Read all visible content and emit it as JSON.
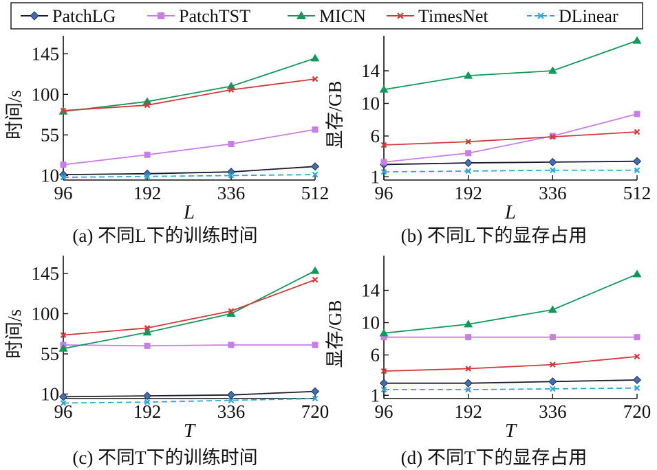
{
  "colors": {
    "PatchLG": "#1a1a2e",
    "PatchLG_marker": "#3f6fb5",
    "PatchTST": "#c77ee6",
    "MICN": "#12985a",
    "TimesNet": "#d13a3a",
    "DLinear": "#2aa8d8"
  },
  "legend": {
    "placement": "top",
    "entries": [
      {
        "name": "PatchLG",
        "marker": "diamond"
      },
      {
        "name": "PatchTST",
        "marker": "square"
      },
      {
        "name": "MICN",
        "marker": "triangle"
      },
      {
        "name": "TimesNet",
        "marker": "x"
      },
      {
        "name": "DLinear",
        "marker": "x",
        "dashed": true
      }
    ]
  },
  "chart_data": [
    {
      "type": "line",
      "caption": "(a) 不同L下的训练时间",
      "xlabel": "L",
      "ylabel": "时间/s",
      "categories": [
        "96",
        "192",
        "336",
        "512"
      ],
      "yticks": [
        10,
        55,
        100,
        145
      ],
      "ylim": [
        5,
        165
      ],
      "series": [
        {
          "name": "PatchLG",
          "values": [
            11,
            12,
            14,
            20
          ]
        },
        {
          "name": "PatchTST",
          "values": [
            22,
            33,
            45,
            61
          ]
        },
        {
          "name": "MICN",
          "values": [
            81,
            92,
            109,
            140
          ]
        },
        {
          "name": "TimesNet",
          "values": [
            82,
            88,
            105,
            117
          ]
        },
        {
          "name": "DLinear",
          "values": [
            8,
            9,
            10,
            11
          ]
        }
      ]
    },
    {
      "type": "line",
      "caption": "(b) 不同L下的显存占用",
      "xlabel": "L",
      "ylabel": "显存/GB",
      "categories": [
        "96",
        "192",
        "336",
        "512"
      ],
      "yticks": [
        1,
        6,
        10,
        14
      ],
      "ylim": [
        0.6,
        18.3
      ],
      "series": [
        {
          "name": "PatchLG",
          "values": [
            2.5,
            2.7,
            2.8,
            2.9
          ]
        },
        {
          "name": "PatchTST",
          "values": [
            2.8,
            3.9,
            6.0,
            8.7
          ]
        },
        {
          "name": "MICN",
          "values": [
            11.7,
            13.4,
            14.0,
            17.7
          ]
        },
        {
          "name": "TimesNet",
          "values": [
            4.9,
            5.3,
            5.9,
            6.5
          ]
        },
        {
          "name": "DLinear",
          "values": [
            1.6,
            1.7,
            1.8,
            1.8
          ]
        }
      ]
    },
    {
      "type": "line",
      "caption": "(c) 不同T下的训练时间",
      "xlabel": "T",
      "ylabel": "时间/s",
      "categories": [
        "96",
        "192",
        "336",
        "720"
      ],
      "yticks": [
        10,
        55,
        100,
        145
      ],
      "ylim": [
        5,
        165
      ],
      "series": [
        {
          "name": "PatchLG",
          "values": [
            7,
            8,
            9,
            13
          ]
        },
        {
          "name": "PatchTST",
          "values": [
            65,
            64,
            65,
            65
          ]
        },
        {
          "name": "MICN",
          "values": [
            61,
            79,
            100,
            148
          ]
        },
        {
          "name": "TimesNet",
          "values": [
            76,
            84,
            103,
            138
          ]
        },
        {
          "name": "DLinear",
          "values": [
            0,
            1,
            3,
            5
          ]
        }
      ]
    },
    {
      "type": "line",
      "caption": "(d) 不同T下的显存占用",
      "xlabel": "T",
      "ylabel": "显存/GB",
      "categories": [
        "96",
        "192",
        "336",
        "720"
      ],
      "yticks": [
        1,
        6,
        10,
        14
      ],
      "ylim": [
        0.6,
        18.3
      ],
      "series": [
        {
          "name": "PatchLG",
          "values": [
            2.5,
            2.5,
            2.7,
            2.9
          ]
        },
        {
          "name": "PatchTST",
          "values": [
            8.2,
            8.2,
            8.2,
            8.2
          ]
        },
        {
          "name": "MICN",
          "values": [
            8.7,
            9.8,
            11.6,
            16.0
          ]
        },
        {
          "name": "TimesNet",
          "values": [
            4.0,
            4.3,
            4.8,
            5.8
          ]
        },
        {
          "name": "DLinear",
          "values": [
            1.7,
            1.7,
            1.8,
            1.9
          ]
        }
      ]
    }
  ]
}
